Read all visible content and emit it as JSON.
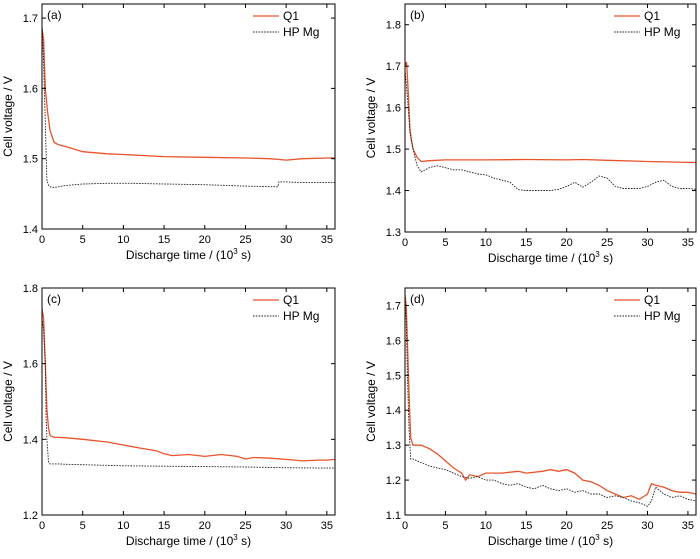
{
  "figure": {
    "panel_count": 4
  },
  "colors": {
    "q1": "#e8532a",
    "hp_mg": "#222222"
  },
  "chart_data": [
    {
      "type": "line",
      "panel_label": "(a)",
      "xlabel": "Discharge time / (10",
      "xlabel_sup": "3",
      "xlabel_tail": " s)",
      "ylabel": "Cell voltage / V",
      "xlim": [
        0,
        36
      ],
      "ylim": [
        1.4,
        1.72
      ],
      "xticks": [
        0,
        5,
        10,
        15,
        20,
        25,
        30,
        35
      ],
      "yticks": [
        1.4,
        1.5,
        1.6,
        1.7
      ],
      "ytick_labels": [
        "1.4",
        "1.5",
        "1.6",
        "1.7"
      ],
      "legend": "top-right",
      "series": [
        {
          "name": "Q1",
          "style": "solid",
          "x": [
            0,
            0.2,
            0.4,
            0.7,
            1,
            1.5,
            2,
            3,
            5,
            8,
            10,
            15,
            20,
            25,
            28,
            29,
            30,
            32,
            35,
            36
          ],
          "y": [
            1.685,
            1.67,
            1.6,
            1.565,
            1.54,
            1.523,
            1.52,
            1.517,
            1.51,
            1.507,
            1.506,
            1.503,
            1.502,
            1.501,
            1.5,
            1.499,
            1.498,
            1.5,
            1.501,
            1.501
          ]
        },
        {
          "name": "HP Mg",
          "style": "dotted",
          "x": [
            0,
            0.2,
            0.4,
            0.6,
            0.8,
            1,
            1.5,
            2,
            3,
            5,
            8,
            11,
            15,
            20,
            25,
            29,
            29.1,
            30,
            32,
            35,
            36
          ],
          "y": [
            1.69,
            1.64,
            1.55,
            1.47,
            1.462,
            1.46,
            1.459,
            1.46,
            1.462,
            1.464,
            1.465,
            1.465,
            1.464,
            1.463,
            1.461,
            1.46,
            1.467,
            1.467,
            1.466,
            1.466,
            1.466
          ]
        }
      ]
    },
    {
      "type": "line",
      "panel_label": "(b)",
      "xlabel": "Discharge time / (10",
      "xlabel_sup": "3",
      "xlabel_tail": " s)",
      "ylabel": "Cell voltage / V",
      "xlim": [
        0,
        36
      ],
      "ylim": [
        1.3,
        1.85
      ],
      "xticks": [
        0,
        5,
        10,
        15,
        20,
        25,
        30,
        35
      ],
      "yticks": [
        1.3,
        1.4,
        1.5,
        1.6,
        1.7,
        1.8
      ],
      "ytick_labels": [
        "1.3",
        "1.4",
        "1.5",
        "1.6",
        "1.7",
        "1.8"
      ],
      "legend": "top-right",
      "series": [
        {
          "name": "Q1",
          "style": "solid",
          "x": [
            0,
            0.2,
            0.4,
            0.6,
            0.8,
            1,
            1.5,
            2,
            3,
            5,
            8,
            10,
            15,
            20,
            22,
            25,
            30,
            35,
            36
          ],
          "y": [
            1.7,
            1.71,
            1.64,
            1.55,
            1.52,
            1.5,
            1.48,
            1.47,
            1.472,
            1.474,
            1.474,
            1.474,
            1.475,
            1.474,
            1.475,
            1.473,
            1.47,
            1.468,
            1.468
          ]
        },
        {
          "name": "HP Mg",
          "style": "dotted",
          "x": [
            0,
            0.2,
            0.4,
            0.6,
            0.8,
            1,
            1.5,
            2,
            3,
            4,
            5,
            6,
            7,
            8,
            9,
            10,
            11,
            12,
            13,
            14,
            15,
            16,
            17,
            18,
            19,
            20,
            21,
            22,
            23,
            24,
            25,
            26,
            27,
            28,
            29,
            30,
            31,
            32,
            33,
            34,
            35,
            36
          ],
          "y": [
            1.69,
            1.65,
            1.6,
            1.54,
            1.52,
            1.5,
            1.46,
            1.445,
            1.455,
            1.46,
            1.455,
            1.45,
            1.45,
            1.445,
            1.44,
            1.438,
            1.43,
            1.425,
            1.42,
            1.402,
            1.4,
            1.4,
            1.4,
            1.4,
            1.403,
            1.41,
            1.42,
            1.408,
            1.42,
            1.435,
            1.43,
            1.41,
            1.405,
            1.405,
            1.405,
            1.41,
            1.42,
            1.425,
            1.41,
            1.405,
            1.405,
            1.403
          ]
        }
      ]
    },
    {
      "type": "line",
      "panel_label": "(c)",
      "xlabel": "Discharge time / (10",
      "xlabel_sup": "3",
      "xlabel_tail": " s)",
      "ylabel": "Cell voltage / V",
      "xlim": [
        0,
        36
      ],
      "ylim": [
        1.2,
        1.8
      ],
      "xticks": [
        0,
        5,
        10,
        15,
        20,
        25,
        30,
        35
      ],
      "yticks": [
        1.2,
        1.4,
        1.6,
        1.8
      ],
      "ytick_labels": [
        "1.2",
        "1.4",
        "1.6",
        "1.8"
      ],
      "legend": "top-right",
      "series": [
        {
          "name": "Q1",
          "style": "solid",
          "x": [
            0,
            0.2,
            0.4,
            0.6,
            0.8,
            1,
            1.5,
            2,
            3,
            5,
            8,
            10,
            12,
            14,
            15,
            16,
            18,
            20,
            22,
            24,
            25,
            26,
            28,
            30,
            32,
            34,
            35,
            36
          ],
          "y": [
            1.745,
            1.72,
            1.6,
            1.48,
            1.43,
            1.41,
            1.405,
            1.405,
            1.404,
            1.4,
            1.393,
            1.385,
            1.377,
            1.37,
            1.362,
            1.357,
            1.36,
            1.355,
            1.36,
            1.355,
            1.348,
            1.352,
            1.35,
            1.347,
            1.343,
            1.345,
            1.345,
            1.347
          ]
        },
        {
          "name": "HP Mg",
          "style": "dotted",
          "x": [
            0,
            0.2,
            0.4,
            0.5,
            0.6,
            0.8,
            1,
            2,
            3,
            5,
            10,
            15,
            20,
            25,
            30,
            35,
            36
          ],
          "y": [
            1.72,
            1.69,
            1.6,
            1.46,
            1.4,
            1.34,
            1.335,
            1.335,
            1.334,
            1.333,
            1.33,
            1.329,
            1.328,
            1.327,
            1.325,
            1.324,
            1.324
          ]
        }
      ]
    },
    {
      "type": "line",
      "panel_label": "(d)",
      "xlabel": "Discharge time / (10",
      "xlabel_sup": "3",
      "xlabel_tail": " s)",
      "ylabel": "Cell voltage / V",
      "xlim": [
        0,
        36
      ],
      "ylim": [
        1.1,
        1.75
      ],
      "xticks": [
        0,
        5,
        10,
        15,
        20,
        25,
        30,
        35
      ],
      "yticks": [
        1.1,
        1.2,
        1.3,
        1.4,
        1.5,
        1.6,
        1.7
      ],
      "ytick_labels": [
        "1.1",
        "1.2",
        "1.3",
        "1.4",
        "1.5",
        "1.6",
        "1.7"
      ],
      "legend": "top-right",
      "series": [
        {
          "name": "Q1",
          "style": "solid",
          "x": [
            0,
            0.15,
            0.3,
            0.5,
            0.7,
            1,
            2,
            3,
            4,
            5,
            6,
            7,
            7.5,
            8,
            9,
            10,
            12,
            14,
            15,
            17,
            18,
            19,
            20,
            21,
            22,
            23,
            24,
            25,
            26,
            27,
            28,
            29,
            30,
            30.5,
            31,
            32,
            33,
            34,
            35,
            36
          ],
          "y": [
            1.73,
            1.7,
            1.6,
            1.45,
            1.32,
            1.3,
            1.3,
            1.29,
            1.275,
            1.255,
            1.235,
            1.22,
            1.2,
            1.215,
            1.21,
            1.22,
            1.22,
            1.225,
            1.22,
            1.225,
            1.23,
            1.225,
            1.23,
            1.22,
            1.2,
            1.195,
            1.185,
            1.17,
            1.16,
            1.15,
            1.155,
            1.145,
            1.16,
            1.19,
            1.185,
            1.18,
            1.17,
            1.165,
            1.165,
            1.16
          ]
        },
        {
          "name": "HP Mg",
          "style": "dotted",
          "x": [
            0,
            0.15,
            0.3,
            0.5,
            0.7,
            1,
            2,
            3,
            4,
            5,
            6,
            7,
            8,
            9,
            10,
            11,
            12,
            13,
            14,
            15,
            16,
            17,
            18,
            19,
            20,
            21,
            22,
            23,
            24,
            25,
            26,
            27,
            28,
            29,
            30,
            30.5,
            31,
            32,
            33,
            34,
            35,
            36
          ],
          "y": [
            1.72,
            1.66,
            1.5,
            1.35,
            1.26,
            1.26,
            1.25,
            1.24,
            1.235,
            1.23,
            1.22,
            1.21,
            1.205,
            1.21,
            1.2,
            1.2,
            1.19,
            1.185,
            1.19,
            1.18,
            1.175,
            1.185,
            1.175,
            1.17,
            1.175,
            1.165,
            1.17,
            1.16,
            1.16,
            1.15,
            1.155,
            1.15,
            1.14,
            1.135,
            1.125,
            1.14,
            1.18,
            1.16,
            1.15,
            1.155,
            1.145,
            1.14
          ]
        }
      ]
    }
  ]
}
